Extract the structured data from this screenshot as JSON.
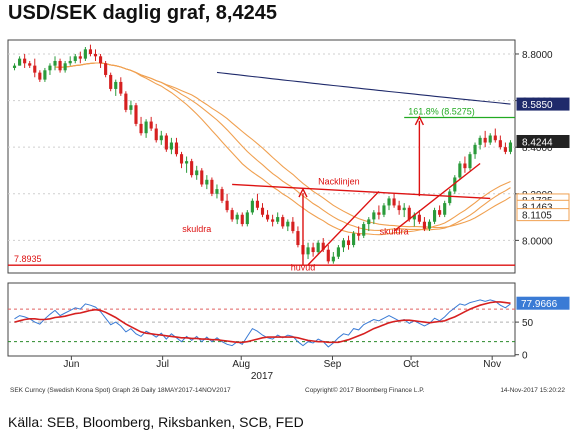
{
  "title": "USD/SEK daglig graf, 8,4245",
  "source": "Källa: SEB, Bloomberg, Riksbanken, SCB, FED",
  "bloomberg": {
    "left": "SEK Curncy (Swedish Krona Spot) Graph 26  Daily 18MAY2017-14NOV2017",
    "center": "Copyright© 2017 Bloomberg Finance L.P.",
    "right": "14-Nov-2017 15:20:22"
  },
  "chart_data": [
    {
      "type": "candlestick",
      "title": "USD/SEK daglig graf, 8,4245",
      "x_ticks": [
        "Jun",
        "Jul",
        "Aug",
        "Sep",
        "Oct",
        "Nov"
      ],
      "x_year": "2017",
      "y_ticks": [
        "8.8000",
        "8.6000",
        "8.4000",
        "8.2000",
        "8.0000"
      ],
      "ylim": [
        7.86,
        8.86
      ],
      "price_labels": [
        {
          "text": "8.5850",
          "value": 8.585,
          "color": "#1f2a6b"
        },
        {
          "text": "8.4244",
          "value": 8.4244,
          "color": "#222222"
        },
        {
          "text": "8.1735",
          "value": 8.1735,
          "color": "#f0a050"
        },
        {
          "text": "8.1463",
          "value": 8.1463,
          "color": "#f0a050"
        },
        {
          "text": "8.1105",
          "value": 8.1105,
          "color": "#f0a050"
        }
      ],
      "levels": [
        {
          "text": "7.8935",
          "value": 7.8935,
          "color": "#dd1111"
        },
        {
          "text": "161.8% (8.5275)",
          "value": 8.5275,
          "color": "#22aa22"
        }
      ],
      "annotations": [
        "Nacklinjen",
        "skuldra",
        "skuldra",
        "huvud"
      ],
      "colors": {
        "up": "#2a9a3a",
        "down": "#d62020",
        "ma_long": "#1f2a6b",
        "ma_bands": "#f0a050",
        "annotation": "#dd1111"
      },
      "series": [
        {
          "type": "ohlc",
          "values": [
            [
              8.74,
              8.76,
              8.73,
              8.75
            ],
            [
              8.75,
              8.79,
              8.75,
              8.78
            ],
            [
              8.78,
              8.8,
              8.74,
              8.76
            ],
            [
              8.76,
              8.77,
              8.74,
              8.75
            ],
            [
              8.75,
              8.78,
              8.7,
              8.72
            ],
            [
              8.72,
              8.73,
              8.68,
              8.69
            ],
            [
              8.69,
              8.74,
              8.68,
              8.73
            ],
            [
              8.73,
              8.76,
              8.71,
              8.75
            ],
            [
              8.75,
              8.79,
              8.73,
              8.77
            ],
            [
              8.77,
              8.78,
              8.72,
              8.73
            ],
            [
              8.73,
              8.77,
              8.72,
              8.76
            ],
            [
              8.76,
              8.79,
              8.75,
              8.77
            ],
            [
              8.77,
              8.8,
              8.76,
              8.79
            ],
            [
              8.79,
              8.81,
              8.76,
              8.78
            ],
            [
              8.78,
              8.83,
              8.77,
              8.82
            ],
            [
              8.82,
              8.84,
              8.79,
              8.8
            ],
            [
              8.8,
              8.82,
              8.77,
              8.79
            ],
            [
              8.79,
              8.8,
              8.74,
              8.76
            ],
            [
              8.76,
              8.77,
              8.7,
              8.71
            ],
            [
              8.71,
              8.72,
              8.64,
              8.65
            ],
            [
              8.65,
              8.69,
              8.62,
              8.68
            ],
            [
              8.68,
              8.7,
              8.62,
              8.63
            ],
            [
              8.63,
              8.64,
              8.55,
              8.56
            ],
            [
              8.56,
              8.6,
              8.54,
              8.58
            ],
            [
              8.58,
              8.59,
              8.49,
              8.5
            ],
            [
              8.5,
              8.53,
              8.45,
              8.46
            ],
            [
              8.46,
              8.52,
              8.44,
              8.51
            ],
            [
              8.51,
              8.53,
              8.47,
              8.48
            ],
            [
              8.48,
              8.5,
              8.42,
              8.43
            ],
            [
              8.43,
              8.47,
              8.41,
              8.45
            ],
            [
              8.45,
              8.46,
              8.38,
              8.39
            ],
            [
              8.39,
              8.44,
              8.37,
              8.42
            ],
            [
              8.42,
              8.44,
              8.36,
              8.37
            ],
            [
              8.37,
              8.38,
              8.31,
              8.33
            ],
            [
              8.33,
              8.36,
              8.29,
              8.34
            ],
            [
              8.34,
              8.35,
              8.27,
              8.28
            ],
            [
              8.28,
              8.32,
              8.26,
              8.3
            ],
            [
              8.3,
              8.31,
              8.23,
              8.24
            ],
            [
              8.24,
              8.28,
              8.22,
              8.26
            ],
            [
              8.26,
              8.27,
              8.19,
              8.2
            ],
            [
              8.2,
              8.24,
              8.18,
              8.22
            ],
            [
              8.22,
              8.23,
              8.16,
              8.17
            ],
            [
              8.17,
              8.2,
              8.12,
              8.13
            ],
            [
              8.13,
              8.14,
              8.08,
              8.09
            ],
            [
              8.09,
              8.12,
              8.07,
              8.11
            ],
            [
              8.11,
              8.12,
              8.06,
              8.07
            ],
            [
              8.07,
              8.13,
              8.06,
              8.12
            ],
            [
              8.12,
              8.18,
              8.11,
              8.17
            ],
            [
              8.17,
              8.2,
              8.13,
              8.14
            ],
            [
              8.14,
              8.16,
              8.1,
              8.11
            ],
            [
              8.11,
              8.13,
              8.08,
              8.09
            ],
            [
              8.09,
              8.11,
              8.06,
              8.08
            ],
            [
              8.08,
              8.12,
              8.07,
              8.1
            ],
            [
              8.1,
              8.11,
              8.05,
              8.06
            ],
            [
              8.06,
              8.09,
              8.04,
              8.08
            ],
            [
              8.08,
              8.1,
              8.03,
              8.04
            ],
            [
              8.04,
              8.06,
              7.97,
              7.98
            ],
            [
              7.98,
              8.0,
              7.92,
              7.94
            ],
            [
              7.94,
              7.99,
              7.92,
              7.97
            ],
            [
              7.97,
              7.99,
              7.93,
              7.95
            ],
            [
              7.95,
              8.0,
              7.94,
              7.99
            ],
            [
              7.99,
              8.01,
              7.95,
              7.96
            ],
            [
              7.96,
              7.98,
              7.9,
              7.91
            ],
            [
              7.91,
              7.95,
              7.9,
              7.93
            ],
            [
              7.93,
              7.98,
              7.92,
              7.97
            ],
            [
              7.97,
              8.01,
              7.95,
              8.0
            ],
            [
              8.0,
              8.02,
              7.96,
              7.98
            ],
            [
              7.98,
              8.04,
              7.97,
              8.03
            ],
            [
              8.03,
              8.06,
              8.0,
              8.02
            ],
            [
              8.02,
              8.08,
              8.01,
              8.07
            ],
            [
              8.07,
              8.1,
              8.04,
              8.09
            ],
            [
              8.09,
              8.13,
              8.07,
              8.12
            ],
            [
              8.12,
              8.15,
              8.09,
              8.11
            ],
            [
              8.11,
              8.16,
              8.1,
              8.15
            ],
            [
              8.15,
              8.19,
              8.13,
              8.18
            ],
            [
              8.18,
              8.2,
              8.14,
              8.15
            ],
            [
              8.15,
              8.17,
              8.11,
              8.13
            ],
            [
              8.13,
              8.16,
              8.1,
              8.14
            ],
            [
              8.14,
              8.15,
              8.08,
              8.09
            ],
            [
              8.09,
              8.12,
              8.06,
              8.11
            ],
            [
              8.11,
              8.13,
              8.07,
              8.08
            ],
            [
              8.08,
              8.1,
              8.04,
              8.05
            ],
            [
              8.05,
              8.09,
              8.04,
              8.08
            ],
            [
              8.08,
              8.14,
              8.07,
              8.13
            ],
            [
              8.13,
              8.15,
              8.1,
              8.11
            ],
            [
              8.11,
              8.17,
              8.1,
              8.16
            ],
            [
              8.16,
              8.22,
              8.15,
              8.21
            ],
            [
              8.21,
              8.28,
              8.2,
              8.27
            ],
            [
              8.27,
              8.34,
              8.26,
              8.33
            ],
            [
              8.33,
              8.36,
              8.29,
              8.31
            ],
            [
              8.31,
              8.38,
              8.3,
              8.37
            ],
            [
              8.37,
              8.42,
              8.35,
              8.41
            ],
            [
              8.41,
              8.45,
              8.39,
              8.44
            ],
            [
              8.44,
              8.47,
              8.4,
              8.42
            ],
            [
              8.42,
              8.46,
              8.41,
              8.45
            ],
            [
              8.45,
              8.48,
              8.42,
              8.43
            ],
            [
              8.43,
              8.45,
              8.39,
              8.4
            ],
            [
              8.4,
              8.42,
              8.37,
              8.38
            ],
            [
              8.38,
              8.43,
              8.37,
              8.42
            ]
          ]
        }
      ]
    },
    {
      "type": "line",
      "y_ticks": [
        "50",
        "0"
      ],
      "ylim": [
        -2,
        110
      ],
      "last_value_label": "77.9666",
      "reference_levels": [
        70,
        50,
        20
      ],
      "series": [
        {
          "values": [
            55,
            60,
            58,
            55,
            50,
            47,
            55,
            62,
            68,
            60,
            64,
            68,
            72,
            70,
            78,
            76,
            73,
            66,
            56,
            46,
            50,
            44,
            35,
            40,
            32,
            28,
            36,
            32,
            27,
            33,
            24,
            32,
            26,
            20,
            28,
            22,
            28,
            20,
            27,
            20,
            26,
            20,
            16,
            14,
            20,
            16,
            28,
            40,
            36,
            30,
            26,
            24,
            30,
            26,
            30,
            28,
            20,
            14,
            20,
            18,
            24,
            20,
            12,
            18,
            26,
            32,
            30,
            40,
            38,
            46,
            50,
            54,
            52,
            56,
            60,
            56,
            52,
            54,
            48,
            52,
            48,
            44,
            48,
            56,
            52,
            58,
            66,
            72,
            78,
            76,
            80,
            82,
            84,
            82,
            84,
            82,
            76,
            72,
            78
          ]
        },
        {
          "values": [
            50,
            52,
            54,
            55,
            55,
            54,
            54,
            55,
            57,
            58,
            59,
            61,
            63,
            64,
            66,
            68,
            69,
            68,
            65,
            61,
            57,
            52,
            47,
            43,
            39,
            35,
            33,
            32,
            31,
            30,
            29,
            28,
            27,
            26,
            26,
            25,
            25,
            24,
            24,
            23,
            23,
            22,
            21,
            20,
            19,
            19,
            20,
            22,
            24,
            26,
            27,
            27,
            27,
            27,
            27,
            27,
            26,
            24,
            22,
            21,
            20,
            20,
            19,
            19,
            19,
            21,
            23,
            26,
            29,
            32,
            36,
            40,
            43,
            46,
            49,
            51,
            52,
            53,
            53,
            52,
            51,
            50,
            49,
            50,
            51,
            52,
            55,
            58,
            62,
            66,
            70,
            73,
            76,
            78,
            80,
            81,
            81,
            80,
            79
          ]
        }
      ]
    }
  ]
}
